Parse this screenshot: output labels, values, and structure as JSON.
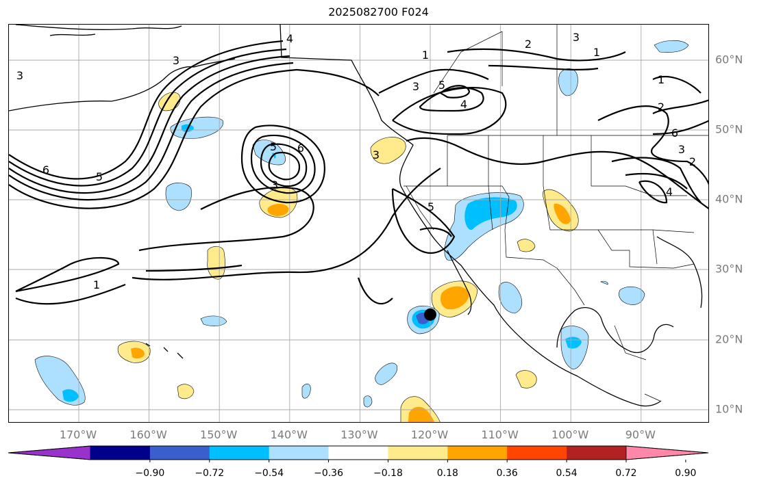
{
  "title": "2025082700 F024",
  "map": {
    "lon_range": [
      -180,
      -80
    ],
    "lat_range": [
      8,
      65
    ],
    "longitude_labels": [
      "170°W",
      "160°W",
      "150°W",
      "140°W",
      "130°W",
      "120°W",
      "110°W",
      "100°W",
      "90°W"
    ],
    "latitude_labels": [
      "60°N",
      "50°N",
      "40°N",
      "30°N",
      "20°N",
      "10°N"
    ],
    "gridlines": true,
    "contour_labels": [
      "4",
      "2",
      "3",
      "1",
      "1",
      "3",
      "5",
      "4",
      "1",
      "2",
      "6",
      "3",
      "5",
      "6",
      "3",
      "2",
      "4",
      "5",
      "6",
      "3",
      "5",
      "3",
      "3",
      "1"
    ],
    "marker": {
      "lon": -120,
      "lat": 23.6,
      "color": "#000000"
    }
  },
  "colorbar": {
    "colors": [
      "#9932CC",
      "#00008B",
      "#3A5FCD",
      "#00BFFF",
      "#ADE0FF",
      "#FFFFFF",
      "#FFEA8C",
      "#FFA500",
      "#FF4500",
      "#B22222",
      "#FF88AA"
    ],
    "tick_labels": [
      "−0.90",
      "−0.72",
      "−0.54",
      "−0.36",
      "−0.18",
      "0.18",
      "0.36",
      "0.54",
      "0.72",
      "0.90"
    ],
    "extend": "both"
  }
}
